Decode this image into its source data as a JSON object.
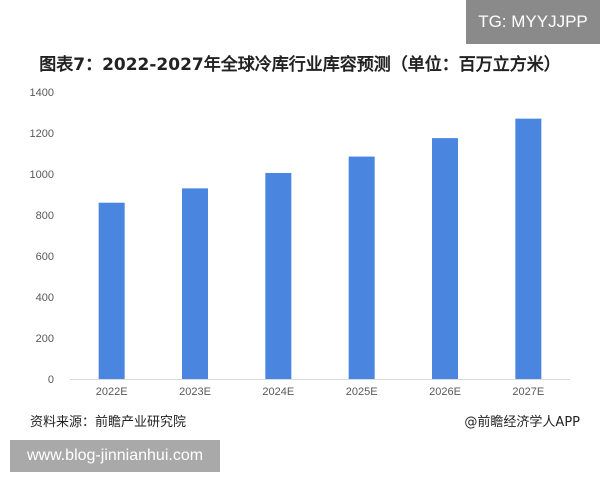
{
  "badge": {
    "top_right": "TG: MYYJJPP"
  },
  "chart_data": {
    "type": "bar",
    "title": "图表7：2022-2027年全球冷库行业库容预测（单位：百万立方米）",
    "categories": [
      "2022E",
      "2023E",
      "2024E",
      "2025E",
      "2026E",
      "2027E"
    ],
    "values": [
      860,
      930,
      1005,
      1085,
      1175,
      1270
    ],
    "ylim": [
      0,
      1400
    ],
    "yticks": [
      0,
      200,
      400,
      600,
      800,
      1000,
      1200,
      1400
    ],
    "xlabel": "",
    "ylabel": "",
    "grid": false,
    "legend": "none",
    "bar_color": "#4a86e0"
  },
  "footer": {
    "source": "资料来源：前瞻产业研究院",
    "brand": "@前瞻经济学人APP"
  },
  "watermark": {
    "url": "www.blog-jinnianhui.com"
  }
}
